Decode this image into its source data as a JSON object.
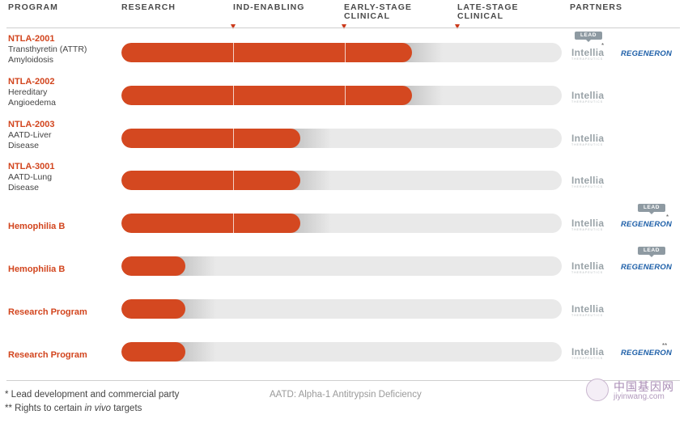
{
  "headers": {
    "program": "PROGRAM",
    "research": "RESEARCH",
    "ind_enabling": "IND-ENABLING",
    "early_stage_1": "EARLY-STAGE",
    "early_stage_2": "CLINICAL",
    "late_stage_1": "LATE-STAGE",
    "late_stage_2": "CLINICAL",
    "partners": "PARTNERS"
  },
  "partner_labels": {
    "lead": "LEAD",
    "intellia": "Intellia",
    "intellia_tag": "THERAPEUTICS",
    "regeneron": "REGENERON",
    "asterisk_single": "*",
    "asterisk_double": "**"
  },
  "chart_data": {
    "type": "bar",
    "orientation": "horizontal",
    "stages": [
      "RESEARCH",
      "IND-ENABLING",
      "EARLY-STAGE CLINICAL",
      "LATE-STAGE CLINICAL"
    ],
    "scale_note": "value = progress in stage units (0 = start of Research, 4 = end of Late-Stage Clinical)",
    "xlim": [
      0,
      4
    ],
    "colors": {
      "fill": "#d44820",
      "track": "#e9e9e9",
      "program_name": "#d2451e",
      "regeneron": "#1d5fa8"
    },
    "programs": [
      {
        "name": "NTLA-2001",
        "desc": [
          "Transthyretin (ATTR)",
          "Amyloidosis"
        ],
        "value": 2.6,
        "partners": [
          "Intellia",
          "Regeneron"
        ],
        "lead": "Intellia",
        "intellia_mark": "*",
        "regeneron_mark": ""
      },
      {
        "name": "NTLA-2002",
        "desc": [
          "Hereditary",
          "Angioedema"
        ],
        "value": 2.6,
        "partners": [
          "Intellia"
        ],
        "lead": "",
        "intellia_mark": "",
        "regeneron_mark": ""
      },
      {
        "name": "NTLA-2003",
        "desc": [
          "AATD-Liver",
          "Disease"
        ],
        "value": 1.6,
        "partners": [
          "Intellia"
        ],
        "lead": "",
        "intellia_mark": "",
        "regeneron_mark": ""
      },
      {
        "name": "NTLA-3001",
        "desc": [
          "AATD-Lung",
          "Disease"
        ],
        "value": 1.6,
        "partners": [
          "Intellia"
        ],
        "lead": "",
        "intellia_mark": "",
        "regeneron_mark": ""
      },
      {
        "name": "Hemophilia B",
        "desc": [],
        "value": 1.6,
        "partners": [
          "Intellia",
          "Regeneron"
        ],
        "lead": "Regeneron",
        "intellia_mark": "",
        "regeneron_mark": "*"
      },
      {
        "name": "Hemophilia B",
        "desc": [],
        "value": 0.57,
        "partners": [
          "Intellia",
          "Regeneron"
        ],
        "lead": "Regeneron",
        "intellia_mark": "",
        "regeneron_mark": ""
      },
      {
        "name": "Research Program",
        "desc": [],
        "value": 0.57,
        "partners": [
          "Intellia"
        ],
        "lead": "",
        "intellia_mark": "",
        "regeneron_mark": ""
      },
      {
        "name": "Research Program",
        "desc": [],
        "value": 0.57,
        "partners": [
          "Intellia",
          "Regeneron"
        ],
        "lead": "",
        "intellia_mark": "",
        "regeneron_mark": "**"
      }
    ]
  },
  "footnotes": {
    "lead_note": "* Lead development and commercial party",
    "rights_prefix": "** Rights to certain ",
    "rights_italic": "in vivo",
    "rights_suffix": " targets",
    "aatd": "AATD: Alpha-1 Antitrypsin Deficiency"
  },
  "watermark": {
    "title": "中国基因网",
    "url": "jiyinwang.com"
  }
}
